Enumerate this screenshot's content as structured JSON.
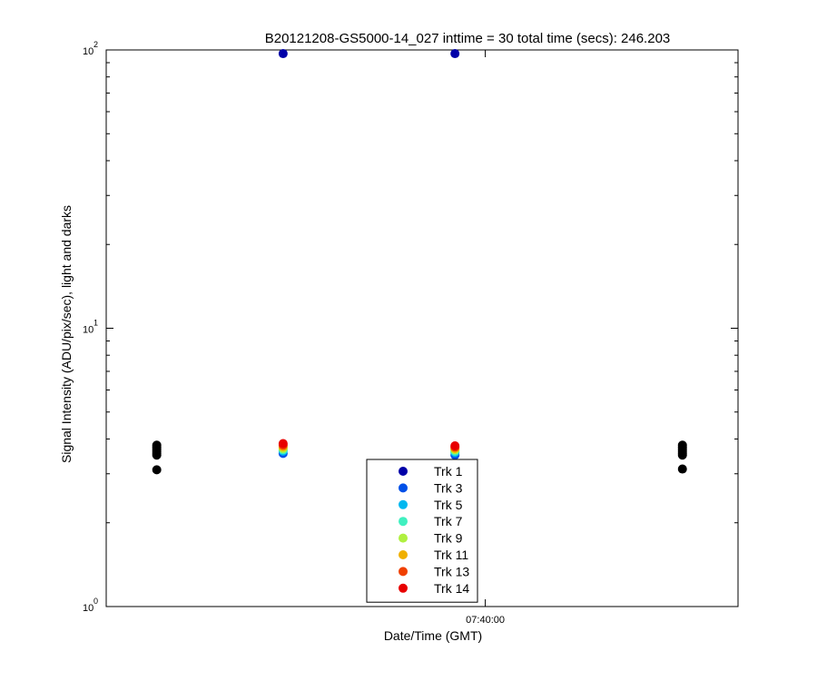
{
  "chart_data": {
    "type": "scatter",
    "title": "B20121208-GS5000-14_027 inttime = 30 total time (secs): 246.203",
    "xlabel": "Date/Time (GMT)",
    "ylabel": "Signal Intensity (ADU/pix/sec), light and darks",
    "yscale": "log",
    "ylim": [
      1,
      100
    ],
    "xlim": [
      "07:37:30",
      "07:41:40"
    ],
    "x_ticks": [
      {
        "value": "07:40:00",
        "label": "07:40:00"
      }
    ],
    "y_ticks": [
      {
        "value": 1,
        "base": "10",
        "exp": "0"
      },
      {
        "value": 10,
        "base": "10",
        "exp": "1"
      },
      {
        "value": 100,
        "base": "10",
        "exp": "2"
      }
    ],
    "grid": false,
    "legend_position": "bottom-center",
    "series": [
      {
        "name": "Trk 1",
        "color": "#0000a8",
        "points": [
          {
            "x": "07:38:40",
            "y": 97
          },
          {
            "x": "07:39:48",
            "y": 97
          }
        ]
      },
      {
        "name": "Trk 3",
        "color": "#0050e8",
        "points": [
          {
            "x": "07:38:40",
            "y": 3.55
          },
          {
            "x": "07:39:48",
            "y": 3.5
          }
        ]
      },
      {
        "name": "Trk 5",
        "color": "#00b8f0",
        "points": [
          {
            "x": "07:38:40",
            "y": 3.62
          },
          {
            "x": "07:39:48",
            "y": 3.58
          }
        ]
      },
      {
        "name": "Trk 7",
        "color": "#40f0c0",
        "points": [
          {
            "x": "07:38:40",
            "y": 3.66
          },
          {
            "x": "07:39:48",
            "y": 3.62
          }
        ]
      },
      {
        "name": "Trk 9",
        "color": "#b0f040",
        "points": [
          {
            "x": "07:38:40",
            "y": 3.7
          },
          {
            "x": "07:39:48",
            "y": 3.66
          }
        ]
      },
      {
        "name": "Trk 11",
        "color": "#f0b000",
        "points": [
          {
            "x": "07:38:40",
            "y": 3.75
          },
          {
            "x": "07:39:48",
            "y": 3.7
          }
        ]
      },
      {
        "name": "Trk 13",
        "color": "#f04000",
        "points": [
          {
            "x": "07:38:40",
            "y": 3.8
          },
          {
            "x": "07:39:48",
            "y": 3.74
          }
        ]
      },
      {
        "name": "Trk 14",
        "color": "#e80000",
        "points": [
          {
            "x": "07:38:40",
            "y": 3.85
          },
          {
            "x": "07:39:48",
            "y": 3.78
          }
        ]
      },
      {
        "color": "#000000",
        "points": [
          {
            "x": "07:37:50",
            "y": 3.1
          },
          {
            "x": "07:37:50",
            "y": 3.5
          },
          {
            "x": "07:37:50",
            "y": 3.55
          },
          {
            "x": "07:37:50",
            "y": 3.6
          },
          {
            "x": "07:37:50",
            "y": 3.65
          },
          {
            "x": "07:37:50",
            "y": 3.7
          },
          {
            "x": "07:37:50",
            "y": 3.75
          },
          {
            "x": "07:37:50",
            "y": 3.8
          },
          {
            "x": "07:41:18",
            "y": 3.12
          },
          {
            "x": "07:41:18",
            "y": 3.5
          },
          {
            "x": "07:41:18",
            "y": 3.55
          },
          {
            "x": "07:41:18",
            "y": 3.6
          },
          {
            "x": "07:41:18",
            "y": 3.65
          },
          {
            "x": "07:41:18",
            "y": 3.7
          },
          {
            "x": "07:41:18",
            "y": 3.75
          },
          {
            "x": "07:41:18",
            "y": 3.8
          }
        ]
      }
    ]
  }
}
